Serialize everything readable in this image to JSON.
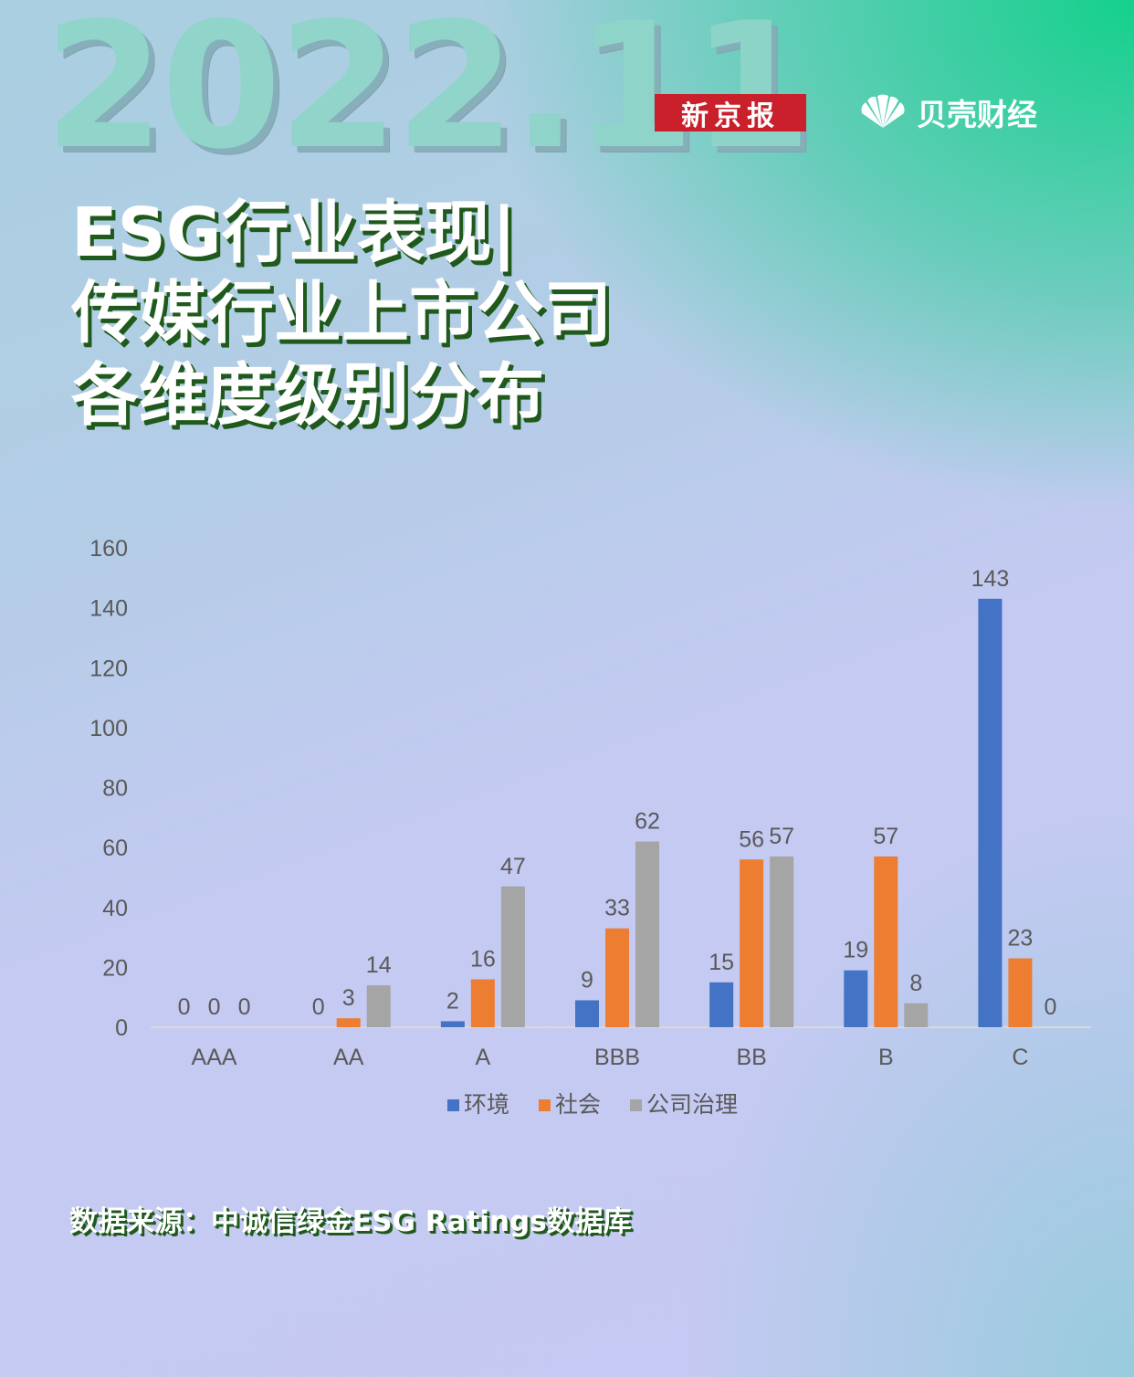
{
  "header": {
    "big_date": "2022.11",
    "newspaper_logo": "新京报",
    "brand_name": "贝壳财经"
  },
  "title": {
    "line1": "ESG行业表现|",
    "line2": "传媒行业上市公司",
    "line3": "各维度级别分布"
  },
  "source": "数据来源：中诚信绿金ESG Ratings数据库",
  "colors": {
    "env": "#4472c4",
    "social": "#ed7d31",
    "gov": "#a5a5a5",
    "title_shadow": "#1f5a1c",
    "logo_red": "#c9202b"
  },
  "chart_data": {
    "type": "bar",
    "categories": [
      "AAA",
      "AA",
      "A",
      "BBB",
      "BB",
      "B",
      "C"
    ],
    "series": [
      {
        "name": "环境",
        "values": [
          0,
          0,
          2,
          9,
          15,
          19,
          143
        ]
      },
      {
        "name": "社会",
        "values": [
          0,
          3,
          16,
          33,
          56,
          57,
          23
        ]
      },
      {
        "name": "公司治理",
        "values": [
          0,
          14,
          47,
          62,
          57,
          8,
          0
        ]
      }
    ],
    "ylim": [
      0,
      160
    ],
    "yticks": [
      0,
      20,
      40,
      60,
      80,
      100,
      120,
      140,
      160
    ],
    "grid": false,
    "legend": "bottom",
    "data_labels": true
  }
}
